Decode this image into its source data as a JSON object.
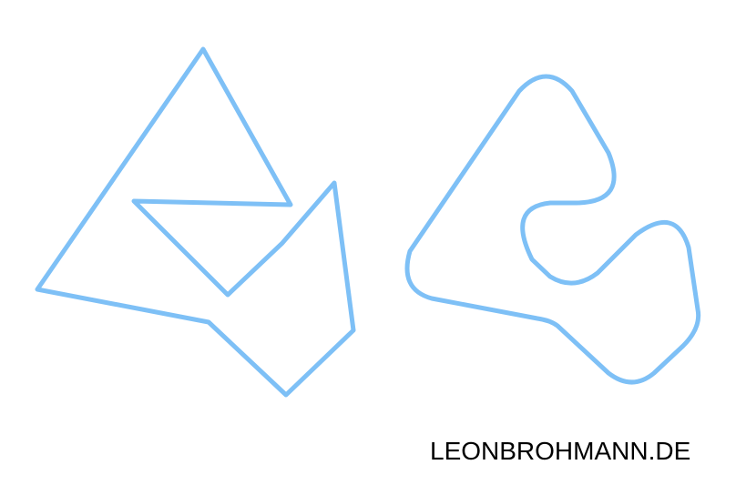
{
  "stroke_color": "#7ec0f6",
  "shapes": [
    {
      "name": "sharp-corner-polygon"
    },
    {
      "name": "rounded-corner-polygon"
    }
  ],
  "watermark": "LEONBROHMANN.DE"
}
